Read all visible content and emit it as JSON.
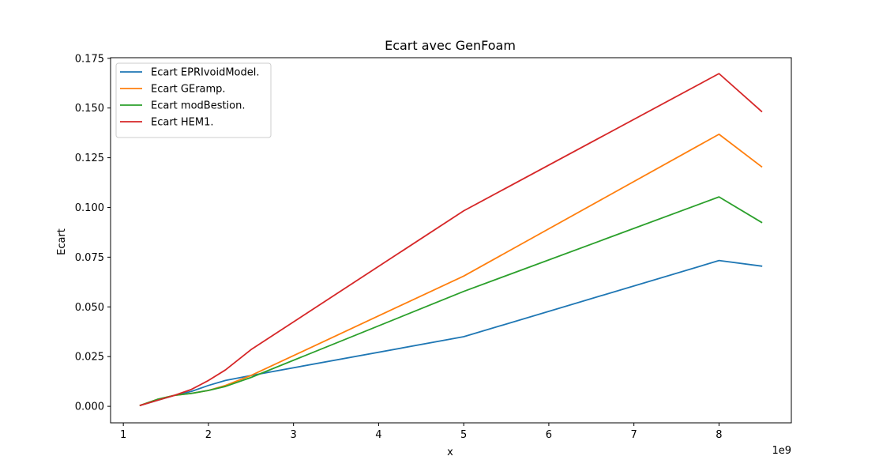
{
  "chart_data": {
    "type": "line",
    "title": "Ecart avec GenFoam",
    "xlabel": "x",
    "ylabel": "Ecart",
    "x_offset_label": "1e9",
    "x_scale": 1000000000,
    "xlim": [
      0.85,
      8.85
    ],
    "ylim": [
      -0.0083,
      0.1753
    ],
    "x_ticks": [
      1,
      2,
      3,
      4,
      5,
      6,
      7,
      8
    ],
    "y_ticks": [
      0.0,
      0.025,
      0.05,
      0.075,
      0.1,
      0.125,
      0.15,
      0.175
    ],
    "y_tick_labels": [
      "0.000",
      "0.025",
      "0.050",
      "0.075",
      "0.100",
      "0.125",
      "0.150",
      "0.175"
    ],
    "grid": false,
    "legend_position": "upper left",
    "x": [
      1.2,
      1.4,
      1.6,
      1.8,
      2.0,
      2.2,
      2.5,
      5.0,
      8.0,
      8.5
    ],
    "series": [
      {
        "name": "Ecart EPRIvoidModel.",
        "color": "#1f77b4",
        "values": [
          0.0005,
          0.003,
          0.0055,
          0.0075,
          0.0105,
          0.013,
          0.0155,
          0.035,
          0.0733,
          0.0705
        ]
      },
      {
        "name": "Ecart GEramp.",
        "color": "#ff7f0e",
        "values": [
          0.0005,
          0.0035,
          0.0055,
          0.0065,
          0.008,
          0.0105,
          0.0155,
          0.0655,
          0.1368,
          0.1205
        ]
      },
      {
        "name": "Ecart modBestion.",
        "color": "#2ca02c",
        "values": [
          0.0005,
          0.0035,
          0.0055,
          0.0065,
          0.008,
          0.01,
          0.0145,
          0.0578,
          0.1053,
          0.0925
        ]
      },
      {
        "name": "Ecart HEM1.",
        "color": "#d62728",
        "values": [
          0.0005,
          0.003,
          0.0055,
          0.0085,
          0.013,
          0.0183,
          0.0285,
          0.0983,
          0.1673,
          0.1483
        ]
      }
    ]
  }
}
